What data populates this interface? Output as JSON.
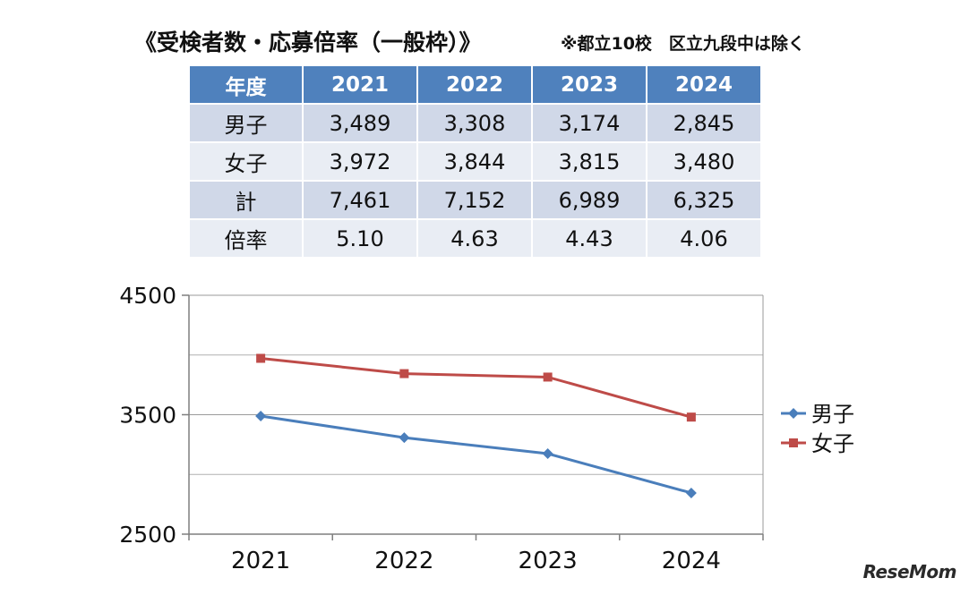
{
  "title": "《受検者数・応募倍率（一般枠）》",
  "note": "※都立10校　区立九段中は除く",
  "table": {
    "header": [
      "年度",
      "2021",
      "2022",
      "2023",
      "2024"
    ],
    "rows": [
      [
        "男子",
        "3,489",
        "3,308",
        "3,174",
        "2,845"
      ],
      [
        "女子",
        "3,972",
        "3,844",
        "3,815",
        "3,480"
      ],
      [
        "計",
        "7,461",
        "7,152",
        "6,989",
        "6,325"
      ],
      [
        "倍率",
        "5.10",
        "4.63",
        "4.43",
        "4.06"
      ]
    ]
  },
  "chart_data": {
    "type": "line",
    "categories": [
      "2021",
      "2022",
      "2023",
      "2024"
    ],
    "series": [
      {
        "name": "男子",
        "values": [
          3489,
          3308,
          3174,
          2845
        ],
        "color": "#4a7ebb",
        "marker": "diamond"
      },
      {
        "name": "女子",
        "values": [
          3972,
          3844,
          3815,
          3480
        ],
        "color": "#be4b48",
        "marker": "square"
      }
    ],
    "ylim": [
      2500,
      4500
    ],
    "yticks": [
      "4500",
      "3500",
      "2500"
    ],
    "minor_gridlines": [
      3000,
      4000
    ],
    "grid": true,
    "legend": "right"
  },
  "logo": "ReseMom"
}
